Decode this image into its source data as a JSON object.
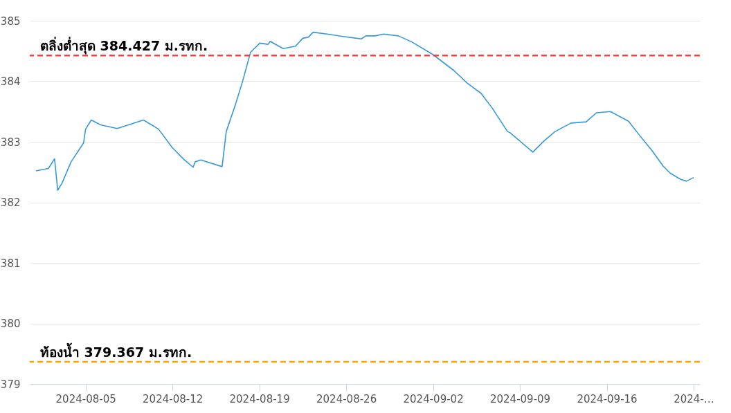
{
  "chart_data": {
    "type": "line",
    "x": [
      "2024-08-01T00:00",
      "2024-08-02T00:00",
      "2024-08-02T12:00",
      "2024-08-02T18:00",
      "2024-08-03T02:00",
      "2024-08-03T20:00",
      "2024-08-04T20:00",
      "2024-08-05T00:00",
      "2024-08-05T11:00",
      "2024-08-06T05:00",
      "2024-08-07T13:00",
      "2024-08-09T16:00",
      "2024-08-10T21:00",
      "2024-08-12T00:00",
      "2024-08-12T22:00",
      "2024-08-13T16:00",
      "2024-08-13T20:00",
      "2024-08-14T07:00",
      "2024-08-16T00:00",
      "2024-08-16T08:00",
      "2024-08-17T02:00",
      "2024-08-17T16:00",
      "2024-08-18T07:00",
      "2024-08-19T01:00",
      "2024-08-19T17:00",
      "2024-08-19T21:00",
      "2024-08-20T22:00",
      "2024-08-21T22:00",
      "2024-08-22T12:00",
      "2024-08-22T23:00",
      "2024-08-23T08:00",
      "2024-08-24T11:00",
      "2024-08-25T18:00",
      "2024-08-27T05:00",
      "2024-08-27T14:00",
      "2024-08-28T08:00",
      "2024-08-29T00:00",
      "2024-08-30T05:00",
      "2024-08-31T07:00",
      "2024-09-02T00:00",
      "2024-09-03T16:00",
      "2024-09-04T18:00",
      "2024-09-05T21:00",
      "2024-09-06T19:00",
      "2024-09-08T00:00",
      "2024-09-08T05:00",
      "2024-09-10T01:00",
      "2024-09-10T22:00",
      "2024-09-11T20:00",
      "2024-09-13T03:00",
      "2024-09-14T08:00",
      "2024-09-15T04:00",
      "2024-09-16T07:00",
      "2024-09-17T18:00",
      "2024-09-18T17:00",
      "2024-09-19T15:00",
      "2024-09-20T13:00",
      "2024-09-21T03:00",
      "2024-09-21T23:00",
      "2024-09-22T10:00",
      "2024-09-23T00:00"
    ],
    "series": [
      {
        "color": "#3498db",
        "values": [
          382.52,
          382.56,
          382.72,
          382.2,
          382.31,
          382.67,
          382.98,
          383.21,
          383.36,
          383.28,
          383.22,
          383.36,
          383.21,
          382.9,
          382.71,
          382.58,
          382.67,
          382.7,
          382.59,
          383.17,
          383.62,
          384.01,
          384.48,
          384.63,
          384.61,
          384.66,
          384.54,
          384.58,
          384.71,
          384.73,
          384.81,
          384.78,
          384.74,
          384.7,
          384.75,
          384.75,
          384.78,
          384.75,
          384.65,
          384.44,
          384.18,
          383.97,
          383.8,
          383.55,
          383.17,
          383.15,
          382.83,
          383.01,
          383.17,
          383.31,
          383.33,
          383.48,
          383.5,
          383.34,
          383.09,
          382.86,
          382.6,
          382.48,
          382.38,
          382.35,
          382.41
        ]
      }
    ],
    "xlim": [
      "2024-07-31T12:00",
      "2024-09-23T12:00"
    ],
    "xticks": [
      "2024-08-05",
      "2024-08-12",
      "2024-08-19",
      "2024-08-26",
      "2024-09-02",
      "2024-09-09",
      "2024-09-16",
      {
        "value": "2024-09-23",
        "label": "2024-…"
      }
    ],
    "ylim": [
      379,
      385
    ],
    "yticks": [
      379,
      380,
      381,
      382,
      383,
      384,
      385
    ],
    "grid": "y",
    "line_style": "solid",
    "ref_lines": [
      {
        "axis": "y",
        "value": 384.427,
        "label": "ตลิ่งต่ำสุด 384.427 ม.รทก.",
        "color": "#ff3b3b",
        "line_style": "dashed"
      },
      {
        "axis": "y",
        "value": 379.367,
        "label": "ท้องน้ำ 379.367 ม.รทก.",
        "color": "#ffa500",
        "line_style": "dashed"
      }
    ]
  }
}
